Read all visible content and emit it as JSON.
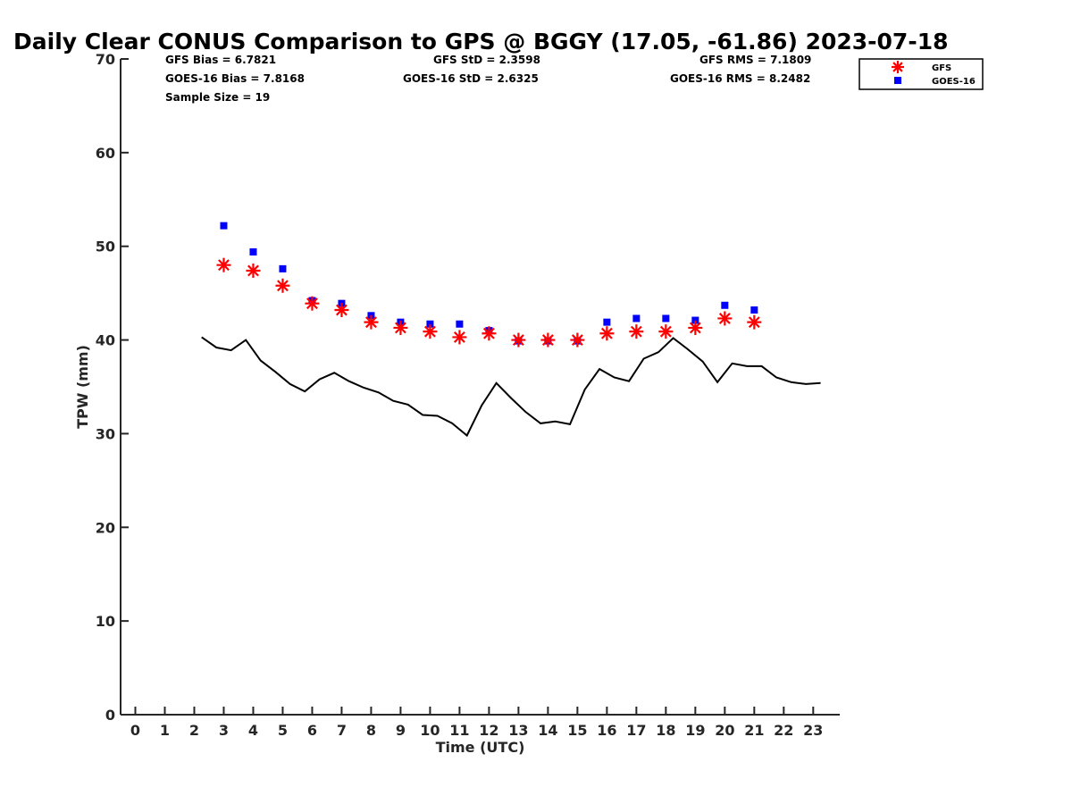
{
  "chart_data": {
    "type": "scatter",
    "title": "Daily Clear CONUS Comparison to GPS @ BGGY (17.05, -61.86) 2023-07-18",
    "xlabel": "Time (UTC)",
    "ylabel": "TPW (mm)",
    "xlim": [
      -0.5,
      23.9
    ],
    "ylim": [
      0,
      70
    ],
    "xticks": [
      0,
      1,
      2,
      3,
      4,
      5,
      6,
      7,
      8,
      9,
      10,
      11,
      12,
      13,
      14,
      15,
      16,
      17,
      18,
      19,
      20,
      21,
      22,
      23
    ],
    "yticks": [
      0,
      10,
      20,
      30,
      40,
      50,
      60,
      70
    ],
    "legend_position": "top-right-outside",
    "colors": {
      "gfs": "#ff0000",
      "goes": "#0000ff",
      "gps": "#000000"
    },
    "stats": {
      "gfs_bias": "GFS Bias = 6.7821",
      "goes_bias": "GOES-16 Bias = 7.8168",
      "sample_size": "Sample Size = 19",
      "gfs_std": "GFS StD = 2.3598",
      "goes_std": "GOES-16 StD = 2.6325",
      "gfs_rms": "GFS RMS = 7.1809",
      "goes_rms": "GOES-16 RMS = 8.2482"
    },
    "series": [
      {
        "name": "GFS",
        "marker": "asterisk",
        "x": [
          3,
          4,
          5,
          6,
          7,
          8,
          9,
          10,
          11,
          12,
          13,
          14,
          15,
          16,
          17,
          18,
          19,
          20,
          21
        ],
        "y": [
          48.0,
          47.4,
          45.8,
          43.9,
          43.2,
          41.9,
          41.3,
          40.9,
          40.3,
          40.7,
          40.0,
          40.0,
          40.0,
          40.7,
          40.9,
          40.9,
          41.3,
          42.3,
          41.9
        ]
      },
      {
        "name": "GOES-16",
        "marker": "square",
        "x": [
          3,
          4,
          5,
          6,
          7,
          8,
          9,
          10,
          11,
          12,
          13,
          14,
          15,
          16,
          17,
          18,
          19,
          20,
          21
        ],
        "y": [
          52.2,
          49.4,
          47.6,
          44.2,
          43.9,
          42.6,
          41.9,
          41.7,
          41.7,
          41.0,
          39.9,
          39.9,
          39.9,
          41.9,
          42.3,
          42.3,
          42.1,
          43.7,
          43.2
        ]
      },
      {
        "name": "GPS",
        "marker": "line",
        "x": [
          2.25,
          2.75,
          3.25,
          3.75,
          4.25,
          4.75,
          5.25,
          5.75,
          6.25,
          6.75,
          7.25,
          7.75,
          8.25,
          8.75,
          9.25,
          9.75,
          10.25,
          10.75,
          11.25,
          11.75,
          12.25,
          12.75,
          13.25,
          13.75,
          14.25,
          14.75,
          15.25,
          15.75,
          16.25,
          16.75,
          17.25,
          17.75,
          18.25,
          18.75,
          19.25,
          19.75,
          20.25,
          20.75,
          21.25,
          21.75,
          22.25,
          22.75,
          23.25
        ],
        "y": [
          40.3,
          39.2,
          38.9,
          40.0,
          37.8,
          36.6,
          35.3,
          34.5,
          35.8,
          36.5,
          35.6,
          34.9,
          34.4,
          33.5,
          33.1,
          32.0,
          31.9,
          31.1,
          29.8,
          33.0,
          35.4,
          33.8,
          32.3,
          31.1,
          31.3,
          31.0,
          34.7,
          36.9,
          36.0,
          35.6,
          38.0,
          38.7,
          40.2,
          39.0,
          37.7,
          35.5,
          37.5,
          37.2,
          37.2,
          36.0,
          35.5,
          35.3,
          35.4
        ]
      }
    ]
  }
}
